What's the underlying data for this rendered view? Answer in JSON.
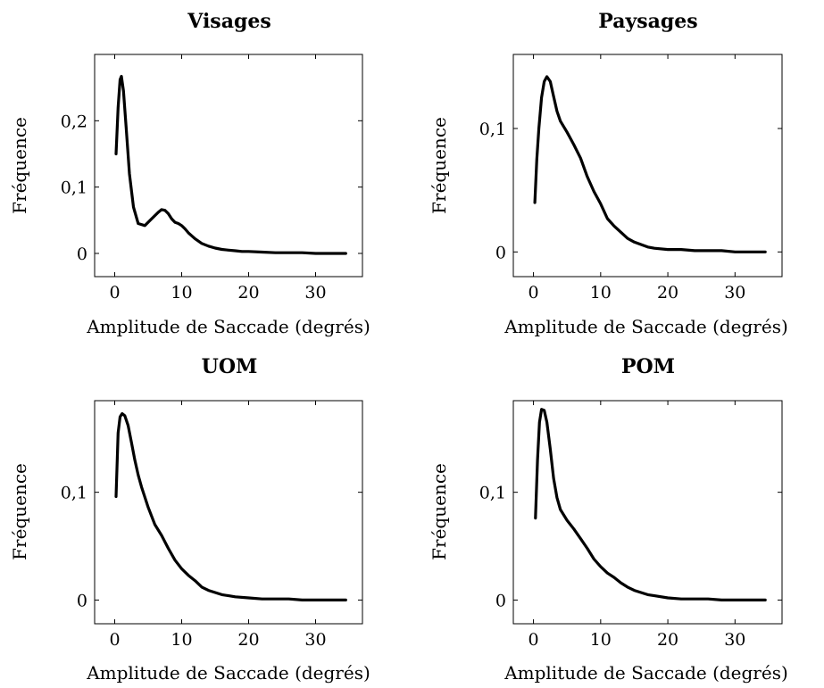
{
  "chart_data": [
    {
      "type": "line",
      "title": "Visages",
      "xlabel": "Amplitude de Saccade (degrés)",
      "ylabel": "Fréquence",
      "xlim": [
        -3,
        37
      ],
      "ylim": [
        -0.035,
        0.3
      ],
      "xticks": [
        0,
        10,
        20,
        30
      ],
      "xtick_labels": [
        "0",
        "10",
        "20",
        "30"
      ],
      "yticks": [
        0,
        0.1,
        0.2
      ],
      "ytick_labels": [
        "0",
        "0,1",
        "0,2"
      ],
      "grid": false,
      "series": [
        {
          "x": [
            0.2,
            0.5,
            0.8,
            1.0,
            1.3,
            1.7,
            2.2,
            2.8,
            3.5,
            4.5,
            5.5,
            6.5,
            7.0,
            7.5,
            8.0,
            8.5,
            9.0,
            9.5,
            10.0,
            10.5,
            11.0,
            12.0,
            13.0,
            14.0,
            15.0,
            16.0,
            17.0,
            18.0,
            19.0,
            20.0,
            22.0,
            24.0,
            26.0,
            28.0,
            30.0,
            32.0,
            34.5
          ],
          "y": [
            0.15,
            0.22,
            0.262,
            0.267,
            0.245,
            0.19,
            0.12,
            0.07,
            0.045,
            0.042,
            0.052,
            0.062,
            0.066,
            0.065,
            0.06,
            0.052,
            0.047,
            0.045,
            0.042,
            0.037,
            0.031,
            0.022,
            0.015,
            0.011,
            0.008,
            0.006,
            0.005,
            0.004,
            0.003,
            0.003,
            0.002,
            0.001,
            0.001,
            0.001,
            0.0,
            0.0,
            0.0
          ]
        }
      ]
    },
    {
      "type": "line",
      "title": "Paysages",
      "xlabel": "Amplitude de Saccade (degrés)",
      "ylabel": "Fréquence",
      "xlim": [
        -3,
        37
      ],
      "ylim": [
        -0.02,
        0.16
      ],
      "xticks": [
        0,
        10,
        20,
        30
      ],
      "xtick_labels": [
        "0",
        "10",
        "20",
        "30"
      ],
      "yticks": [
        0,
        0.1
      ],
      "ytick_labels": [
        "0",
        "0,1"
      ],
      "grid": false,
      "series": [
        {
          "x": [
            0.2,
            0.5,
            0.8,
            1.2,
            1.6,
            2.0,
            2.5,
            3.0,
            3.5,
            4.0,
            5.0,
            6.0,
            7.0,
            8.0,
            9.0,
            10.0,
            11.0,
            12.0,
            13.0,
            14.0,
            15.0,
            16.0,
            17.0,
            18.0,
            20.0,
            22.0,
            24.0,
            26.0,
            28.0,
            30.0,
            32.0,
            34.5
          ],
          "y": [
            0.04,
            0.075,
            0.1,
            0.125,
            0.138,
            0.142,
            0.138,
            0.126,
            0.114,
            0.106,
            0.097,
            0.087,
            0.076,
            0.061,
            0.049,
            0.039,
            0.027,
            0.021,
            0.016,
            0.011,
            0.008,
            0.006,
            0.004,
            0.003,
            0.002,
            0.002,
            0.001,
            0.001,
            0.001,
            0.0,
            0.0,
            0.0
          ]
        }
      ]
    },
    {
      "type": "line",
      "title": "UOM",
      "xlabel": "Amplitude de Saccade (degrés)",
      "ylabel": "Fréquence",
      "xlim": [
        -3,
        37
      ],
      "ylim": [
        -0.022,
        0.185
      ],
      "xticks": [
        0,
        10,
        20,
        30
      ],
      "xtick_labels": [
        "0",
        "10",
        "20",
        "30"
      ],
      "yticks": [
        0,
        0.1
      ],
      "ytick_labels": [
        "0",
        "0,1"
      ],
      "grid": false,
      "series": [
        {
          "x": [
            0.2,
            0.5,
            0.8,
            1.1,
            1.5,
            2.0,
            2.5,
            3.0,
            3.5,
            4.0,
            5.0,
            6.0,
            7.0,
            8.0,
            9.0,
            10.0,
            11.0,
            12.0,
            13.0,
            14.0,
            15.0,
            16.0,
            17.0,
            18.0,
            20.0,
            22.0,
            24.0,
            26.0,
            28.0,
            30.0,
            32.0,
            34.5
          ],
          "y": [
            0.096,
            0.155,
            0.17,
            0.173,
            0.171,
            0.162,
            0.146,
            0.13,
            0.116,
            0.105,
            0.086,
            0.07,
            0.06,
            0.048,
            0.037,
            0.029,
            0.023,
            0.018,
            0.012,
            0.009,
            0.007,
            0.005,
            0.004,
            0.003,
            0.002,
            0.001,
            0.001,
            0.001,
            0.0,
            0.0,
            0.0,
            0.0
          ]
        }
      ]
    },
    {
      "type": "line",
      "title": "POM",
      "xlabel": "Amplitude de Saccade (degrés)",
      "ylabel": "Fréquence",
      "xlim": [
        -3,
        37
      ],
      "ylim": [
        -0.022,
        0.185
      ],
      "xticks": [
        0,
        10,
        20,
        30
      ],
      "xtick_labels": [
        "0",
        "10",
        "20",
        "30"
      ],
      "yticks": [
        0,
        0.1
      ],
      "ytick_labels": [
        "0",
        "0,1"
      ],
      "grid": false,
      "series": [
        {
          "x": [
            0.3,
            0.6,
            0.9,
            1.2,
            1.6,
            2.0,
            2.5,
            3.0,
            3.5,
            4.0,
            5.0,
            6.0,
            7.0,
            8.0,
            9.0,
            10.0,
            11.0,
            12.0,
            13.0,
            14.0,
            15.0,
            16.0,
            17.0,
            18.0,
            20.0,
            22.0,
            24.0,
            26.0,
            28.0,
            30.0,
            32.0,
            34.5
          ],
          "y": [
            0.076,
            0.13,
            0.165,
            0.177,
            0.176,
            0.165,
            0.14,
            0.113,
            0.095,
            0.084,
            0.074,
            0.066,
            0.057,
            0.048,
            0.038,
            0.031,
            0.025,
            0.021,
            0.016,
            0.012,
            0.009,
            0.007,
            0.005,
            0.004,
            0.002,
            0.001,
            0.001,
            0.001,
            0.0,
            0.0,
            0.0,
            0.0
          ]
        }
      ]
    }
  ]
}
